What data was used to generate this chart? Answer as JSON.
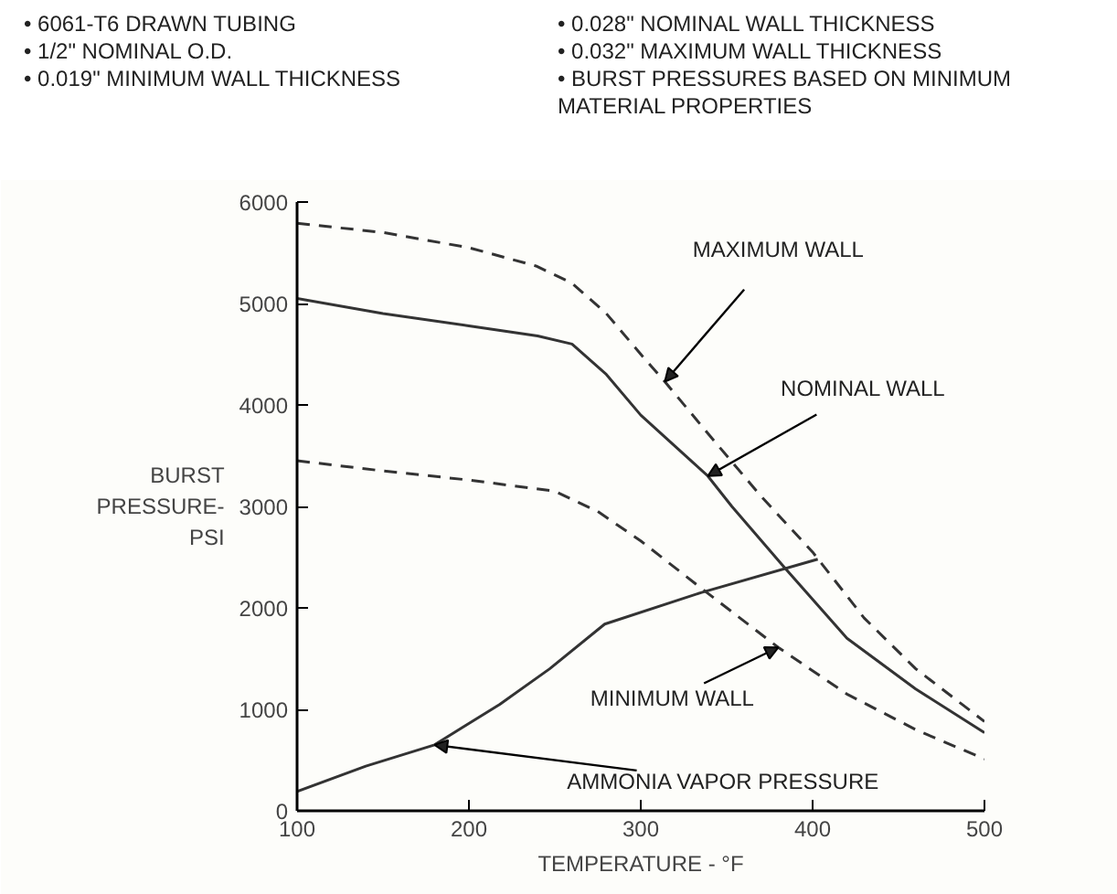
{
  "chart_data": {
    "type": "line",
    "annotations": [
      "• 6061-T6 DRAWN TUBING",
      "• 1/2\" NOMINAL O.D.",
      "• 0.019\" MINIMUM WALL THICKNESS",
      "• 0.028\" NOMINAL WALL THICKNESS",
      "• 0.032\" MAXIMUM WALL THICKNESS",
      "• BURST PRESSURES BASED ON MINIMUM MATERIAL PROPERTIES",
      {
        "text": "MAXIMUM WALL",
        "x": 314,
        "y": 4230
      },
      {
        "text": "NOMINAL WALL",
        "x": 339,
        "y": 3300
      },
      {
        "text": "MINIMUM WALL",
        "x": 380,
        "y": 1610
      },
      {
        "text": "AMMONIA VAPOR PRESSURE",
        "x": 180,
        "y": 650
      }
    ],
    "xlabel": "TEMPERATURE - °F",
    "ylabel": "BURST PRESSURE- PSI",
    "xlim": [
      100,
      500
    ],
    "xticks": [
      100,
      200,
      300,
      400,
      500
    ],
    "ylim": [
      0,
      6000
    ],
    "yticks": [
      0,
      1000,
      2000,
      3000,
      4000,
      5000,
      6000
    ],
    "grid": false,
    "series": [
      {
        "color": "#333333",
        "line_style": "dashed",
        "x": [
          100,
          150,
          200,
          239,
          260,
          280,
          300,
          314,
          340,
          370,
          400,
          430,
          460,
          500
        ],
        "values": [
          5790,
          5700,
          5550,
          5370,
          5200,
          4900,
          4500,
          4230,
          3700,
          3100,
          2550,
          1900,
          1400,
          880
        ]
      },
      {
        "color": "#333333",
        "line_style": "solid",
        "x": [
          100,
          150,
          200,
          240,
          260,
          280,
          300,
          339,
          353,
          383,
          420,
          460,
          500
        ],
        "values": [
          5050,
          4900,
          4780,
          4680,
          4600,
          4300,
          3900,
          3300,
          3000,
          2410,
          1700,
          1200,
          770
        ]
      },
      {
        "color": "#333333",
        "line_style": "dashed",
        "x": [
          100,
          150,
          200,
          250,
          275,
          300,
          337,
          380,
          420,
          460,
          500
        ],
        "values": [
          3450,
          3350,
          3260,
          3150,
          2950,
          2660,
          2170,
          1610,
          1150,
          800,
          510
        ]
      },
      {
        "color": "#333333",
        "line_style": "solid",
        "x": [
          100,
          140,
          180,
          218,
          247,
          279,
          335,
          403
        ],
        "values": [
          190,
          440,
          650,
          1050,
          1400,
          1840,
          2150,
          2480
        ]
      }
    ]
  }
}
